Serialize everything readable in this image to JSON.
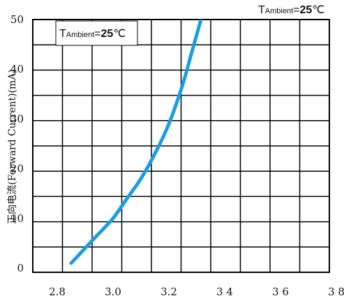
{
  "chart_data": {
    "type": "line",
    "title": "",
    "ylabel": "正向电流(Forward Current)(mA)",
    "xlabel": "",
    "x_ticks": [
      "2.8",
      "3.0",
      "3.2",
      "3 4",
      "3 6",
      "3 8"
    ],
    "y_ticks": [
      "0",
      "10",
      "20",
      "30",
      "40",
      "50"
    ],
    "xlim": [
      2.8,
      3.8
    ],
    "ylim": [
      0,
      50
    ],
    "grid": true,
    "annotation_outside": {
      "t": "T",
      "sub": "Ambient",
      "eq": "=",
      "val": "25",
      "unit": "℃"
    },
    "annotation_inside": {
      "t": "T",
      "sub": "Ambient",
      "eq": "=",
      "val": "25",
      "unit": "℃"
    },
    "line_color": "#1a9ee0",
    "series": [
      {
        "x": [
          2.85,
          2.9,
          2.95,
          3.0,
          3.05,
          3.1,
          3.15,
          3.2,
          3.25,
          3.28,
          3.3,
          3.32
        ],
        "y": [
          1,
          4,
          7,
          10,
          14,
          18,
          23,
          29,
          37,
          43,
          47,
          51
        ]
      }
    ]
  }
}
